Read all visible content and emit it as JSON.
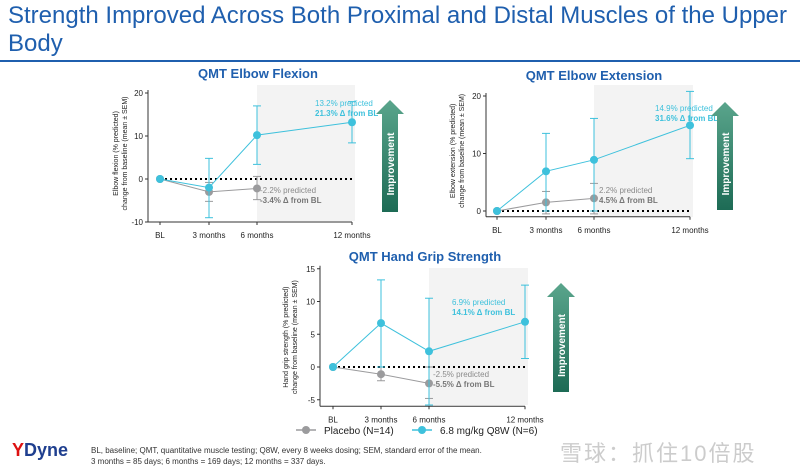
{
  "title": "Strength Improved Across Both Proximal and Distal Muscles of the Upper Body",
  "improvement_label": "Improvement",
  "legend": [
    {
      "name": "Placebo (N=14)",
      "color": "#9b9b9d"
    },
    {
      "name": "6.8 mg/kg Q8W (N=6)",
      "color": "#3ec1dc"
    }
  ],
  "footnote": [
    "BL, baseline; QMT, quantitative muscle testing; Q8W, every 8 weeks dosing; SEM, standard error of the mean.",
    "3 months = 85 days; 6 months = 169 days; 12 months = 337 days."
  ],
  "logo": "Dyne",
  "watermark": "雪球：抓住10倍股",
  "colors": {
    "title": "#1f5fae",
    "drug": "#3ec1dc",
    "placebo": "#9b9b9d",
    "arrow": "#2a7a62",
    "shade": "#f3f3f3"
  },
  "chart_data": [
    {
      "type": "line",
      "title": "QMT Elbow Flexion",
      "ylabel": "Elbow flexion (% predicted) change from baseline (mean ± SEM)",
      "categories": [
        "BL",
        "3 months",
        "6 months",
        "12 months"
      ],
      "ylim": [
        -10,
        20
      ],
      "yticks": [
        -10,
        0,
        10,
        20
      ],
      "series": [
        {
          "name": "Placebo (N=14)",
          "values": [
            0,
            -3.0,
            -2.2,
            null
          ],
          "err_low": [
            0,
            -5.2,
            -4.8,
            null
          ],
          "err_high": [
            0,
            -0.8,
            0.6,
            null
          ]
        },
        {
          "name": "6.8 mg/kg Q8W (N=6)",
          "values": [
            0,
            -2.0,
            10.2,
            13.2
          ],
          "err_low": [
            0,
            -9.0,
            3.4,
            8.4
          ],
          "err_high": [
            0,
            4.8,
            17.0,
            18.0
          ]
        }
      ],
      "annotations": {
        "drug": [
          "13.2% predicted",
          "21.3% Δ from BL"
        ],
        "placebo": [
          "-2.2% predicted",
          "-3.4% Δ from BL"
        ]
      }
    },
    {
      "type": "line",
      "title": "QMT Elbow Extension",
      "ylabel": "Elbow extension (% predicted) change from baseline (mean ± SEM)",
      "categories": [
        "BL",
        "3 months",
        "6 months",
        "12 months"
      ],
      "ylim": [
        -1,
        20
      ],
      "yticks": [
        0,
        10,
        20
      ],
      "series": [
        {
          "name": "Placebo (N=14)",
          "values": [
            0,
            1.5,
            2.2,
            null
          ],
          "err_low": [
            0,
            -0.5,
            -0.5,
            null
          ],
          "err_high": [
            0,
            3.4,
            4.8,
            null
          ]
        },
        {
          "name": "6.8 mg/kg Q8W (N=6)",
          "values": [
            0,
            6.9,
            8.9,
            14.9
          ],
          "err_low": [
            0,
            0,
            0,
            9.1
          ],
          "err_high": [
            0,
            13.5,
            16.1,
            20.8
          ]
        }
      ],
      "annotations": {
        "drug": [
          "14.9% predicted",
          "31.6% Δ from BL"
        ],
        "placebo": [
          "2.2% predicted",
          "4.5% Δ from BL"
        ]
      }
    },
    {
      "type": "line",
      "title": "QMT Hand Grip Strength",
      "ylabel": "Hand grip strength (% predicted) change from baseline (mean ± SEM)",
      "categories": [
        "BL",
        "3 months",
        "6 months",
        "12 months"
      ],
      "ylim": [
        -6,
        15
      ],
      "yticks": [
        -5,
        0,
        5,
        10,
        15
      ],
      "series": [
        {
          "name": "Placebo (N=14)",
          "values": [
            0,
            -1.1,
            -2.5,
            null
          ],
          "err_low": [
            0,
            -2.1,
            -4.8,
            null
          ],
          "err_high": [
            0,
            0,
            0,
            null
          ]
        },
        {
          "name": "6.8 mg/kg Q8W (N=6)",
          "values": [
            0,
            6.7,
            2.4,
            6.9
          ],
          "err_low": [
            0,
            0,
            -5.8,
            1.3
          ],
          "err_high": [
            0,
            13.3,
            10.5,
            12.5
          ]
        }
      ],
      "annotations": {
        "drug": [
          "6.9% predicted",
          "14.1% Δ from BL"
        ],
        "placebo": [
          "-2.5% predicted",
          "-5.5% Δ from BL"
        ]
      }
    }
  ]
}
